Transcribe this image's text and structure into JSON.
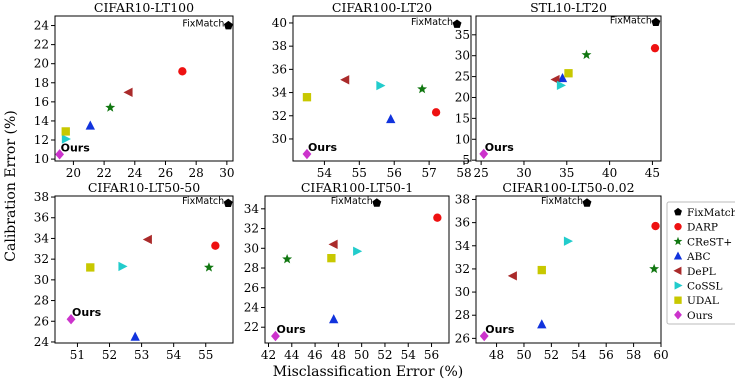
{
  "figure": {
    "ylabel": "Calibration Error (%)",
    "xlabel": "Misclassification Error (%)"
  },
  "legend": [
    {
      "name": "FixMatch",
      "marker": "pentagon",
      "color": "#000000"
    },
    {
      "name": "DARP",
      "marker": "circle",
      "color": "#ee1111"
    },
    {
      "name": "CReST+",
      "marker": "star",
      "color": "#117711"
    },
    {
      "name": "ABC",
      "marker": "triangle-up",
      "color": "#1133dd"
    },
    {
      "name": "DePL",
      "marker": "triangle-left",
      "color": "#aa2a2a"
    },
    {
      "name": "CoSSL",
      "marker": "triangle-right",
      "color": "#22cccc"
    },
    {
      "name": "UDAL",
      "marker": "square",
      "color": "#c8c800"
    },
    {
      "name": "Ours",
      "marker": "diamond",
      "color": "#cc33cc"
    }
  ],
  "annotations": {
    "fixmatch": "FixMatch",
    "ours": "Ours"
  },
  "chart_data": [
    {
      "type": "scatter",
      "title": "CIFAR10-LT100",
      "xlim": [
        18.8,
        30.4
      ],
      "ylim": [
        9.8,
        25.0
      ],
      "xticks": [
        20,
        22,
        24,
        26,
        28,
        30
      ],
      "yticks": [
        10,
        12,
        14,
        16,
        18,
        20,
        22,
        24
      ],
      "points": [
        {
          "name": "FixMatch",
          "x": 30.1,
          "y": 24.0
        },
        {
          "name": "DARP",
          "x": 27.1,
          "y": 19.2
        },
        {
          "name": "CReST+",
          "x": 22.4,
          "y": 15.4
        },
        {
          "name": "ABC",
          "x": 21.1,
          "y": 13.5
        },
        {
          "name": "DePL",
          "x": 23.6,
          "y": 17.0
        },
        {
          "name": "CoSSL",
          "x": 19.5,
          "y": 12.1
        },
        {
          "name": "UDAL",
          "x": 19.5,
          "y": 12.9
        },
        {
          "name": "Ours",
          "x": 19.1,
          "y": 10.5
        }
      ]
    },
    {
      "type": "scatter",
      "title": "CIFAR100-LT20",
      "xlim": [
        53.1,
        58.2
      ],
      "ylim": [
        28.1,
        40.6
      ],
      "xticks": [
        54,
        55,
        56,
        57,
        58
      ],
      "yticks": [
        30,
        32,
        34,
        36,
        38,
        40
      ],
      "points": [
        {
          "name": "FixMatch",
          "x": 57.8,
          "y": 39.9
        },
        {
          "name": "DARP",
          "x": 57.2,
          "y": 32.3
        },
        {
          "name": "CReST+",
          "x": 56.8,
          "y": 34.3
        },
        {
          "name": "ABC",
          "x": 55.9,
          "y": 31.7
        },
        {
          "name": "DePL",
          "x": 54.6,
          "y": 35.1
        },
        {
          "name": "CoSSL",
          "x": 55.6,
          "y": 34.6
        },
        {
          "name": "UDAL",
          "x": 53.5,
          "y": 33.6
        },
        {
          "name": "Ours",
          "x": 53.5,
          "y": 28.7
        }
      ]
    },
    {
      "type": "scatter",
      "title": "STL10-LT20",
      "xlim": [
        24.4,
        46.0
      ],
      "ylim": [
        4.8,
        39.5
      ],
      "xticks": [
        25,
        30,
        35,
        40,
        45
      ],
      "yticks": [
        5,
        10,
        15,
        20,
        25,
        30,
        35
      ],
      "points": [
        {
          "name": "FixMatch",
          "x": 45.4,
          "y": 38.0
        },
        {
          "name": "DARP",
          "x": 45.3,
          "y": 31.8
        },
        {
          "name": "CReST+",
          "x": 37.3,
          "y": 30.2
        },
        {
          "name": "ABC",
          "x": 34.5,
          "y": 24.6
        },
        {
          "name": "DePL",
          "x": 33.7,
          "y": 24.3
        },
        {
          "name": "CoSSL",
          "x": 34.3,
          "y": 22.9
        },
        {
          "name": "UDAL",
          "x": 35.2,
          "y": 25.8
        },
        {
          "name": "Ours",
          "x": 25.3,
          "y": 6.5
        }
      ]
    },
    {
      "type": "scatter",
      "title": "CIFAR10-LT50-50",
      "xlim": [
        50.3,
        55.85
      ],
      "ylim": [
        23.9,
        38.1
      ],
      "xticks": [
        51,
        52,
        53,
        54,
        55
      ],
      "yticks": [
        24,
        26,
        28,
        30,
        32,
        34,
        36,
        38
      ],
      "points": [
        {
          "name": "FixMatch",
          "x": 55.7,
          "y": 37.4
        },
        {
          "name": "DARP",
          "x": 55.3,
          "y": 33.3
        },
        {
          "name": "CReST+",
          "x": 55.1,
          "y": 31.2
        },
        {
          "name": "ABC",
          "x": 52.8,
          "y": 24.5
        },
        {
          "name": "DePL",
          "x": 53.2,
          "y": 33.9
        },
        {
          "name": "CoSSL",
          "x": 52.4,
          "y": 31.3
        },
        {
          "name": "UDAL",
          "x": 51.4,
          "y": 31.2
        },
        {
          "name": "Ours",
          "x": 50.8,
          "y": 26.2
        }
      ]
    },
    {
      "type": "scatter",
      "title": "CIFAR100-LT50-1",
      "xlim": [
        41.7,
        57.5
      ],
      "ylim": [
        20.4,
        35.3
      ],
      "xticks": [
        42,
        44,
        46,
        48,
        50,
        52,
        54,
        56
      ],
      "yticks": [
        22,
        24,
        26,
        28,
        30,
        32,
        34
      ],
      "points": [
        {
          "name": "FixMatch",
          "x": 51.3,
          "y": 34.6
        },
        {
          "name": "DARP",
          "x": 56.5,
          "y": 33.1
        },
        {
          "name": "CReST+",
          "x": 43.6,
          "y": 28.9
        },
        {
          "name": "ABC",
          "x": 47.6,
          "y": 22.8
        },
        {
          "name": "DePL",
          "x": 47.6,
          "y": 30.4
        },
        {
          "name": "CoSSL",
          "x": 49.6,
          "y": 29.7
        },
        {
          "name": "UDAL",
          "x": 47.4,
          "y": 29.0
        },
        {
          "name": "Ours",
          "x": 42.6,
          "y": 21.1
        }
      ]
    },
    {
      "type": "scatter",
      "title": "CIFAR100-LT50-0.02",
      "xlim": [
        46.5,
        60.0
      ],
      "ylim": [
        25.6,
        38.3
      ],
      "xticks": [
        48,
        50,
        52,
        54,
        56,
        58,
        60
      ],
      "yticks": [
        26,
        28,
        30,
        32,
        34,
        36,
        38
      ],
      "points": [
        {
          "name": "FixMatch",
          "x": 54.6,
          "y": 37.7
        },
        {
          "name": "DARP",
          "x": 59.6,
          "y": 35.7
        },
        {
          "name": "CReST+",
          "x": 59.5,
          "y": 32.0
        },
        {
          "name": "ABC",
          "x": 51.3,
          "y": 27.2
        },
        {
          "name": "DePL",
          "x": 49.2,
          "y": 31.4
        },
        {
          "name": "CoSSL",
          "x": 53.2,
          "y": 34.4
        },
        {
          "name": "UDAL",
          "x": 51.3,
          "y": 31.9
        },
        {
          "name": "Ours",
          "x": 47.1,
          "y": 26.2
        }
      ]
    }
  ]
}
